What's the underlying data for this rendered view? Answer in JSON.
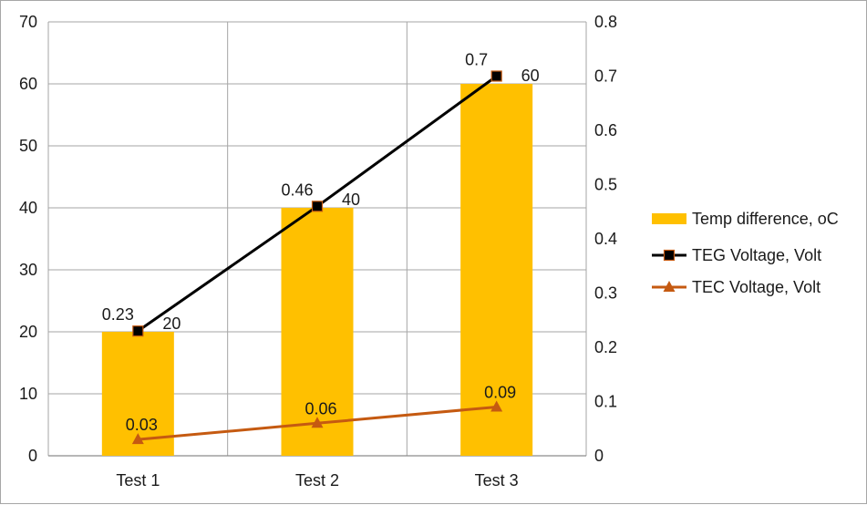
{
  "chart_data": {
    "type": "bar",
    "categories": [
      "Test 1",
      "Test 2",
      "Test 3"
    ],
    "series": [
      {
        "name": "Temp difference, oC",
        "type": "bar",
        "axis": "left",
        "values": [
          20,
          40,
          60
        ],
        "color": "#FFC000"
      },
      {
        "name": "TEG Voltage, Volt",
        "type": "line",
        "axis": "right",
        "values": [
          0.23,
          0.46,
          0.7
        ],
        "color": "#000000",
        "marker": "square"
      },
      {
        "name": "TEC Voltage, Volt",
        "type": "line",
        "axis": "right",
        "values": [
          0.03,
          0.06,
          0.09
        ],
        "color": "#C55A11",
        "marker": "triangle"
      }
    ],
    "y_left": {
      "min": 0,
      "max": 70,
      "ticks": [
        "0",
        "10",
        "20",
        "30",
        "40",
        "50",
        "60",
        "70"
      ]
    },
    "y_right": {
      "min": 0,
      "max": 0.8,
      "ticks": [
        "0",
        "0.1",
        "0.2",
        "0.3",
        "0.4",
        "0.5",
        "0.6",
        "0.7",
        "0.8"
      ]
    },
    "grid": true,
    "legend_position": "right"
  }
}
